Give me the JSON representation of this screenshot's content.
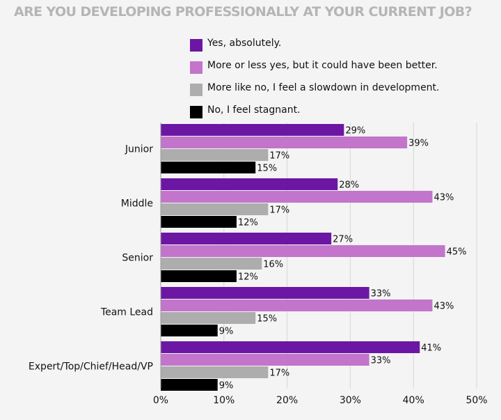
{
  "chart_data": {
    "type": "bar",
    "orientation": "horizontal",
    "title": "ARE YOU DEVELOPING PROFESSIONALLY AT YOUR CURRENT JOB?",
    "categories": [
      "Junior",
      "Middle",
      "Senior",
      "Team Lead",
      "Expert/Top/Chief/Head/VP"
    ],
    "series": [
      {
        "name": "Yes, absolutely.",
        "color": "#6c17a3",
        "values": [
          29,
          28,
          27,
          33,
          41
        ]
      },
      {
        "name": "More or less yes, but it could have been better.",
        "color": "#c275cb",
        "values": [
          39,
          43,
          45,
          43,
          33
        ]
      },
      {
        "name": "More like no, I feel a slowdown in development.",
        "color": "#adadad",
        "values": [
          17,
          17,
          16,
          15,
          17
        ]
      },
      {
        "name": "No, I feel stagnant.",
        "color": "#000000",
        "values": [
          15,
          12,
          12,
          9,
          9
        ]
      }
    ],
    "xlim": [
      0,
      50
    ],
    "xticks": [
      "0%",
      "10%",
      "20%",
      "30%",
      "40%",
      "50%"
    ],
    "value_suffix": "%",
    "legend_position": "top",
    "grid": "vertical"
  }
}
